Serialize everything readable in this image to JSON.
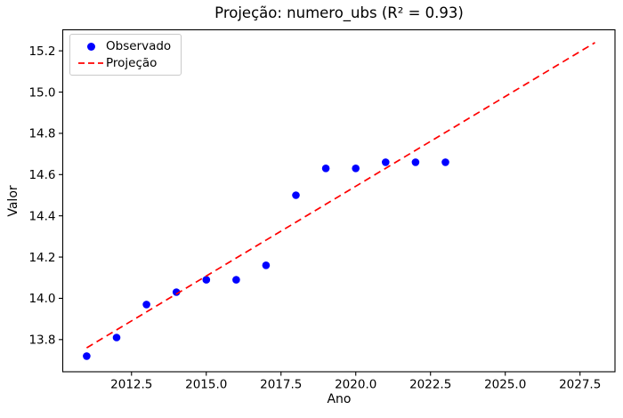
{
  "figure": {
    "background_color": "#ffffff",
    "text_color": "#000000",
    "spine_color": "#000000"
  },
  "chart_data": {
    "type": "scatter",
    "title": "Projeção: numero_ubs (R² = 0.93)",
    "r_squared": "0.93",
    "metric_name": "numero_ubs",
    "xlabel": "Ano",
    "ylabel": "Valor",
    "xlim": [
      2010.2,
      2028.67
    ],
    "ylim": [
      13.644,
      15.302
    ],
    "xticks": [
      2012.5,
      2015.0,
      2017.5,
      2020.0,
      2022.5,
      2025.0,
      2027.5
    ],
    "yticks": [
      13.8,
      14.0,
      14.2,
      14.4,
      14.6,
      14.8,
      15.0,
      15.2
    ],
    "grid": false,
    "legend_position": "upper left",
    "series": [
      {
        "name": "Observado",
        "kind": "scatter",
        "color": "#0000ff",
        "marker": "circle",
        "x": [
          2011,
          2012,
          2013,
          2014,
          2015,
          2016,
          2017,
          2018,
          2019,
          2020,
          2021,
          2022,
          2023
        ],
        "y": [
          13.72,
          13.81,
          13.97,
          14.03,
          14.09,
          14.09,
          14.16,
          14.5,
          14.63,
          14.63,
          14.66,
          14.66,
          14.66
        ]
      },
      {
        "name": "Projeção",
        "kind": "dashed-line",
        "color": "#ff0000",
        "x": [
          2011,
          2028
        ],
        "y": [
          13.76,
          15.24
        ]
      }
    ]
  }
}
